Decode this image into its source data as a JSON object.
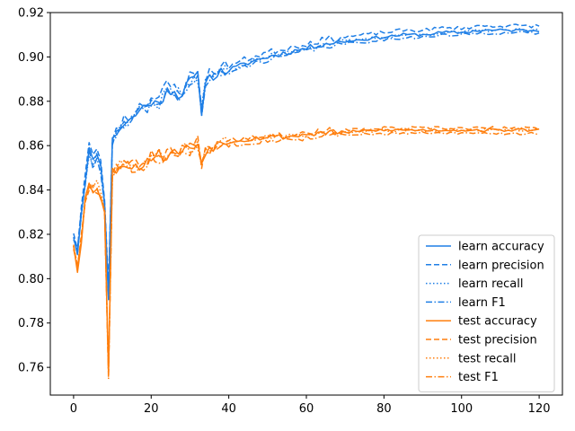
{
  "chart_data": {
    "type": "line",
    "title": "",
    "xlabel": "",
    "ylabel": "",
    "xlim": [
      -6,
      126
    ],
    "ylim": [
      0.7475,
      0.92
    ],
    "xticks": [
      0,
      20,
      40,
      60,
      80,
      100,
      120
    ],
    "yticks": [
      0.76,
      0.78,
      0.8,
      0.82,
      0.84,
      0.86,
      0.88,
      0.9,
      0.92
    ],
    "ytick_labels": [
      "0.76",
      "0.78",
      "0.80",
      "0.82",
      "0.84",
      "0.86",
      "0.88",
      "0.90",
      "0.92"
    ],
    "grid": false,
    "legend": "lower-right",
    "anchors": {
      "learn": [
        [
          0,
          0.82
        ],
        [
          1,
          0.812
        ],
        [
          2,
          0.83
        ],
        [
          3,
          0.845
        ],
        [
          4,
          0.858
        ],
        [
          5,
          0.852
        ],
        [
          6,
          0.858
        ],
        [
          7,
          0.85
        ],
        [
          8,
          0.835
        ],
        [
          9,
          0.792
        ],
        [
          10,
          0.862
        ],
        [
          11,
          0.866
        ],
        [
          12,
          0.868
        ],
        [
          13,
          0.87
        ],
        [
          15,
          0.872
        ],
        [
          17,
          0.876
        ],
        [
          20,
          0.88
        ],
        [
          22,
          0.878
        ],
        [
          24,
          0.886
        ],
        [
          26,
          0.884
        ],
        [
          28,
          0.883
        ],
        [
          30,
          0.889
        ],
        [
          32,
          0.891
        ],
        [
          33,
          0.876
        ],
        [
          34,
          0.889
        ],
        [
          36,
          0.892
        ],
        [
          38,
          0.893
        ],
        [
          40,
          0.894
        ],
        [
          43,
          0.896
        ],
        [
          46,
          0.898
        ],
        [
          50,
          0.9
        ],
        [
          55,
          0.902
        ],
        [
          60,
          0.904
        ],
        [
          65,
          0.906
        ],
        [
          70,
          0.907
        ],
        [
          75,
          0.908
        ],
        [
          80,
          0.909
        ],
        [
          85,
          0.91
        ],
        [
          90,
          0.91
        ],
        [
          95,
          0.911
        ],
        [
          100,
          0.911
        ],
        [
          105,
          0.912
        ],
        [
          110,
          0.912
        ],
        [
          115,
          0.912
        ],
        [
          120,
          0.912
        ]
      ],
      "test": [
        [
          0,
          0.816
        ],
        [
          1,
          0.805
        ],
        [
          2,
          0.818
        ],
        [
          3,
          0.836
        ],
        [
          4,
          0.842
        ],
        [
          5,
          0.84
        ],
        [
          6,
          0.842
        ],
        [
          7,
          0.838
        ],
        [
          8,
          0.83
        ],
        [
          9,
          0.757
        ],
        [
          10,
          0.848
        ],
        [
          11,
          0.85
        ],
        [
          12,
          0.851
        ],
        [
          14,
          0.852
        ],
        [
          16,
          0.85
        ],
        [
          18,
          0.852
        ],
        [
          20,
          0.855
        ],
        [
          22,
          0.856
        ],
        [
          24,
          0.855
        ],
        [
          26,
          0.857
        ],
        [
          28,
          0.858
        ],
        [
          30,
          0.859
        ],
        [
          32,
          0.861
        ],
        [
          33,
          0.852
        ],
        [
          34,
          0.858
        ],
        [
          36,
          0.86
        ],
        [
          40,
          0.862
        ],
        [
          45,
          0.863
        ],
        [
          50,
          0.864
        ],
        [
          55,
          0.864
        ],
        [
          60,
          0.865
        ],
        [
          65,
          0.866
        ],
        [
          70,
          0.866
        ],
        [
          80,
          0.867
        ],
        [
          90,
          0.867
        ],
        [
          100,
          0.867
        ],
        [
          110,
          0.867
        ],
        [
          120,
          0.867
        ]
      ]
    },
    "series": [
      {
        "name": "learn accuracy",
        "group": "learn",
        "color": "#1f7fe6",
        "dash": "",
        "offset": 0.0,
        "seed": 11,
        "amp": 1.0
      },
      {
        "name": "learn precision",
        "group": "learn",
        "color": "#1f7fe6",
        "dash": "6 3",
        "offset": 0.002,
        "seed": 23,
        "amp": 1.2
      },
      {
        "name": "learn recall",
        "group": "learn",
        "color": "#1f7fe6",
        "dash": "1.5 2.5",
        "offset": 0.0,
        "seed": 37,
        "amp": 1.0
      },
      {
        "name": "learn F1",
        "group": "learn",
        "color": "#1f7fe6",
        "dash": "7 2.5 1.5 2.5",
        "offset": -0.0012,
        "seed": 41,
        "amp": 1.0
      },
      {
        "name": "test accuracy",
        "group": "test",
        "color": "#ff7f0e",
        "dash": "",
        "offset": 0.0,
        "seed": 53,
        "amp": 1.0
      },
      {
        "name": "test precision",
        "group": "test",
        "color": "#ff7f0e",
        "dash": "6 3",
        "offset": 0.0008,
        "seed": 67,
        "amp": 1.2
      },
      {
        "name": "test recall",
        "group": "test",
        "color": "#ff7f0e",
        "dash": "1.5 2.5",
        "offset": 0.0,
        "seed": 71,
        "amp": 1.0
      },
      {
        "name": "test F1",
        "group": "test",
        "color": "#ff7f0e",
        "dash": "7 2.5 1.5 2.5",
        "offset": -0.0015,
        "seed": 83,
        "amp": 1.0
      }
    ]
  }
}
